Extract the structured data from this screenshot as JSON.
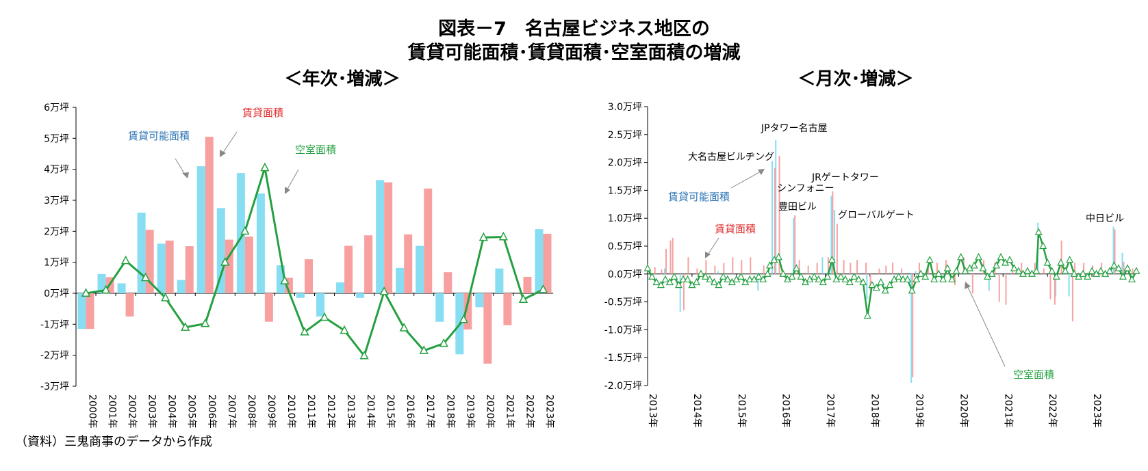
{
  "header": {
    "title_line1": "図表－7　名古屋ビジネス地区の",
    "title_line2": "賃貸可能面積･賃貸面積･空室面積の増減",
    "left_subtitle": "＜年次･増減＞",
    "right_subtitle": "＜月次･増減＞"
  },
  "source": "（資料）三鬼商事のデータから作成",
  "colors": {
    "leasable": "#87DDF2",
    "leased": "#F8A0A0",
    "vacant": "#24A040",
    "leasable_label": "#2E75B6",
    "leased_label": "#E03030",
    "vacant_label": "#22A040"
  },
  "chart_data": [
    {
      "type": "bar",
      "title": "＜年次･増減＞",
      "ylim": [
        -3,
        6
      ],
      "y_ticks": [
        "-3万坪",
        "-2万坪",
        "-1万坪",
        "0万坪",
        "1万坪",
        "2万坪",
        "3万坪",
        "4万坪",
        "5万坪",
        "6万坪"
      ],
      "categories": [
        "2000年",
        "2001年",
        "2002年",
        "2003年",
        "2004年",
        "2005年",
        "2006年",
        "2007年",
        "2008年",
        "2009年",
        "2010年",
        "2011年",
        "2012年",
        "2013年",
        "2014年",
        "2015年",
        "2016年",
        "2017年",
        "2018年",
        "2019年",
        "2020年",
        "2021年",
        "2022年",
        "2023年"
      ],
      "series": [
        {
          "name": "賃貸可能面積",
          "kind": "bar",
          "color": "#87DDF2",
          "values": [
            -1.15,
            0.62,
            0.32,
            2.6,
            1.6,
            0.43,
            4.1,
            2.75,
            3.88,
            3.22,
            0.9,
            -0.15,
            -0.75,
            0.35,
            -0.15,
            3.65,
            0.82,
            1.53,
            -0.92,
            -1.97,
            -0.45,
            0.8,
            0.0,
            2.07
          ]
        },
        {
          "name": "賃貸面積",
          "kind": "bar",
          "color": "#F8A0A0",
          "values": [
            -1.15,
            0.52,
            -0.75,
            2.05,
            1.7,
            1.52,
            5.05,
            1.73,
            1.83,
            -0.92,
            0.5,
            1.1,
            0.0,
            1.53,
            1.87,
            3.58,
            1.9,
            3.38,
            0.68,
            -1.17,
            -2.27,
            -1.03,
            0.53,
            1.92
          ]
        },
        {
          "name": "空室面積",
          "kind": "line",
          "color": "#24A040",
          "values": [
            0.0,
            0.1,
            1.05,
            0.5,
            -0.15,
            -1.1,
            -0.98,
            1.0,
            2.0,
            4.05,
            0.4,
            -1.25,
            -0.78,
            -1.2,
            -2.02,
            0.05,
            -1.12,
            -1.85,
            -1.62,
            -0.85,
            1.8,
            1.82,
            -0.2,
            0.12
          ]
        }
      ],
      "annotations": [
        {
          "text": "賃貸可能面積",
          "color": "#2E75B6"
        },
        {
          "text": "賃貸面積",
          "color": "#E03030"
        },
        {
          "text": "空室面積",
          "color": "#22A040"
        }
      ]
    },
    {
      "type": "bar",
      "title": "＜月次･増減＞",
      "ylim": [
        -2.0,
        3.0
      ],
      "y_ticks": [
        "-2.0万坪",
        "-1.5万坪",
        "-1.0万坪",
        "-0.5万坪",
        "0.0万坪",
        "0.5万坪",
        "1.0万坪",
        "1.5万坪",
        "2.0万坪",
        "2.5万坪",
        "3.0万坪"
      ],
      "x_ticks": [
        "2013年",
        "2014年",
        "2015年",
        "2016年",
        "2017年",
        "2018年",
        "2019年",
        "2020年",
        "2021年",
        "2022年",
        "2023年"
      ],
      "x_range": [
        2013.0,
        2024.0
      ],
      "series": [
        {
          "name": "賃貸可能面積",
          "kind": "bar",
          "color": "#87DDF2",
          "points": [
            [
              2013.4,
              0.1
            ],
            [
              2013.75,
              -0.68
            ],
            [
              2014.6,
              0.05
            ],
            [
              2015.5,
              -0.3
            ],
            [
              2015.82,
              2.02
            ],
            [
              2015.9,
              2.4
            ],
            [
              2016.3,
              1.0
            ],
            [
              2016.95,
              0.3
            ],
            [
              2017.15,
              1.4
            ],
            [
              2017.22,
              1.15
            ],
            [
              2017.95,
              -0.45
            ],
            [
              2018.95,
              -1.95
            ],
            [
              2019.05,
              0.05
            ],
            [
              2020.7,
              -0.3
            ],
            [
              2021.8,
              0.92
            ],
            [
              2022.2,
              -0.4
            ],
            [
              2022.5,
              -0.4
            ],
            [
              2023.5,
              0.85
            ],
            [
              2023.7,
              0.38
            ]
          ]
        },
        {
          "name": "賃貸面積",
          "kind": "bar",
          "color": "#F8A0A0",
          "points": [
            [
              2013.15,
              0.12
            ],
            [
              2013.3,
              0.08
            ],
            [
              2013.4,
              0.45
            ],
            [
              2013.5,
              0.6
            ],
            [
              2013.55,
              0.65
            ],
            [
              2013.8,
              -0.65
            ],
            [
              2013.9,
              0.3
            ],
            [
              2014.1,
              0.1
            ],
            [
              2014.3,
              0.25
            ],
            [
              2014.5,
              0.15
            ],
            [
              2014.7,
              0.2
            ],
            [
              2014.9,
              0.3
            ],
            [
              2015.1,
              0.25
            ],
            [
              2015.3,
              0.3
            ],
            [
              2015.6,
              0.15
            ],
            [
              2015.85,
              1.9
            ],
            [
              2015.95,
              2.12
            ],
            [
              2016.3,
              1.05
            ],
            [
              2016.4,
              0.25
            ],
            [
              2016.6,
              0.15
            ],
            [
              2016.8,
              0.2
            ],
            [
              2017.05,
              0.3
            ],
            [
              2017.15,
              1.48
            ],
            [
              2017.25,
              0.9
            ],
            [
              2017.4,
              0.25
            ],
            [
              2017.55,
              0.2
            ],
            [
              2017.7,
              0.25
            ],
            [
              2017.9,
              0.2
            ],
            [
              2018.0,
              -0.3
            ],
            [
              2018.2,
              0.1
            ],
            [
              2018.35,
              0.15
            ],
            [
              2018.5,
              0.2
            ],
            [
              2018.7,
              0.1
            ],
            [
              2018.95,
              -1.85
            ],
            [
              2019.1,
              0.2
            ],
            [
              2019.3,
              0.15
            ],
            [
              2019.5,
              0.2
            ],
            [
              2019.7,
              0.25
            ],
            [
              2019.9,
              -0.2
            ],
            [
              2020.1,
              0.3
            ],
            [
              2020.3,
              -0.35
            ],
            [
              2020.55,
              0.25
            ],
            [
              2020.8,
              0.2
            ],
            [
              2020.9,
              -0.5
            ],
            [
              2021.05,
              -0.55
            ],
            [
              2021.2,
              0.15
            ],
            [
              2021.4,
              0.2
            ],
            [
              2021.7,
              0.2
            ],
            [
              2021.9,
              0.1
            ],
            [
              2022.05,
              -0.45
            ],
            [
              2022.15,
              -0.55
            ],
            [
              2022.3,
              0.6
            ],
            [
              2022.55,
              -0.85
            ],
            [
              2022.6,
              0.2
            ],
            [
              2022.8,
              0.2
            ],
            [
              2023.0,
              0.15
            ],
            [
              2023.2,
              0.2
            ],
            [
              2023.5,
              0.8
            ],
            [
              2023.7,
              0.22
            ],
            [
              2023.9,
              0.1
            ]
          ]
        },
        {
          "name": "空室面積",
          "kind": "line",
          "color": "#24A040",
          "points": [
            [
              2013.0,
              0.1
            ],
            [
              2013.1,
              -0.05
            ],
            [
              2013.2,
              -0.15
            ],
            [
              2013.3,
              -0.2
            ],
            [
              2013.4,
              -0.1
            ],
            [
              2013.5,
              -0.15
            ],
            [
              2013.6,
              -0.05
            ],
            [
              2013.7,
              -0.2
            ],
            [
              2013.8,
              -0.1
            ],
            [
              2013.9,
              -0.1
            ],
            [
              2014.0,
              -0.2
            ],
            [
              2014.1,
              -0.15
            ],
            [
              2014.2,
              0.0
            ],
            [
              2014.3,
              -0.05
            ],
            [
              2014.4,
              -0.1
            ],
            [
              2014.5,
              -0.15
            ],
            [
              2014.6,
              -0.2
            ],
            [
              2014.7,
              -0.05
            ],
            [
              2014.8,
              -0.1
            ],
            [
              2014.9,
              -0.15
            ],
            [
              2015.0,
              -0.1
            ],
            [
              2015.1,
              -0.05
            ],
            [
              2015.2,
              -0.15
            ],
            [
              2015.3,
              -0.1
            ],
            [
              2015.4,
              -0.1
            ],
            [
              2015.5,
              -0.05
            ],
            [
              2015.6,
              -0.1
            ],
            [
              2015.7,
              0.0
            ],
            [
              2015.75,
              0.15
            ],
            [
              2015.85,
              0.25
            ],
            [
              2015.95,
              0.3
            ],
            [
              2016.05,
              0.0
            ],
            [
              2016.15,
              -0.1
            ],
            [
              2016.25,
              -0.05
            ],
            [
              2016.35,
              0.1
            ],
            [
              2016.45,
              -0.05
            ],
            [
              2016.55,
              -0.15
            ],
            [
              2016.65,
              -0.1
            ],
            [
              2016.75,
              -0.05
            ],
            [
              2016.85,
              -0.1
            ],
            [
              2016.95,
              -0.15
            ],
            [
              2017.05,
              -0.05
            ],
            [
              2017.15,
              0.25
            ],
            [
              2017.25,
              -0.1
            ],
            [
              2017.35,
              -0.05
            ],
            [
              2017.45,
              -0.1
            ],
            [
              2017.55,
              -0.15
            ],
            [
              2017.65,
              -0.05
            ],
            [
              2017.75,
              -0.1
            ],
            [
              2017.85,
              -0.15
            ],
            [
              2017.95,
              -0.75
            ],
            [
              2018.05,
              -0.2
            ],
            [
              2018.15,
              -0.25
            ],
            [
              2018.25,
              -0.15
            ],
            [
              2018.35,
              -0.3
            ],
            [
              2018.45,
              -0.2
            ],
            [
              2018.55,
              -0.1
            ],
            [
              2018.65,
              -0.05
            ],
            [
              2018.75,
              -0.1
            ],
            [
              2018.85,
              -0.1
            ],
            [
              2018.95,
              -0.3
            ],
            [
              2019.05,
              -0.1
            ],
            [
              2019.15,
              0.0
            ],
            [
              2019.25,
              -0.05
            ],
            [
              2019.35,
              0.25
            ],
            [
              2019.45,
              -0.1
            ],
            [
              2019.55,
              0.0
            ],
            [
              2019.65,
              -0.1
            ],
            [
              2019.75,
              0.1
            ],
            [
              2019.85,
              -0.1
            ],
            [
              2019.95,
              0.05
            ],
            [
              2020.05,
              0.3
            ],
            [
              2020.15,
              0.05
            ],
            [
              2020.25,
              0.1
            ],
            [
              2020.35,
              0.15
            ],
            [
              2020.45,
              0.3
            ],
            [
              2020.55,
              0.1
            ],
            [
              2020.65,
              -0.05
            ],
            [
              2020.75,
              0.0
            ],
            [
              2020.85,
              0.15
            ],
            [
              2020.95,
              0.3
            ],
            [
              2021.05,
              0.2
            ],
            [
              2021.15,
              0.25
            ],
            [
              2021.25,
              0.1
            ],
            [
              2021.35,
              0.05
            ],
            [
              2021.45,
              0.0
            ],
            [
              2021.55,
              0.05
            ],
            [
              2021.65,
              0.0
            ],
            [
              2021.75,
              0.05
            ],
            [
              2021.8,
              0.75
            ],
            [
              2021.9,
              0.5
            ],
            [
              2022.0,
              0.2
            ],
            [
              2022.1,
              0.05
            ],
            [
              2022.2,
              -0.05
            ],
            [
              2022.3,
              0.2
            ],
            [
              2022.4,
              0.05
            ],
            [
              2022.5,
              0.25
            ],
            [
              2022.6,
              0.0
            ],
            [
              2022.7,
              -0.05
            ],
            [
              2022.8,
              0.0
            ],
            [
              2022.9,
              -0.05
            ],
            [
              2023.0,
              0.05
            ],
            [
              2023.1,
              0.0
            ],
            [
              2023.2,
              0.05
            ],
            [
              2023.3,
              0.0
            ],
            [
              2023.4,
              0.05
            ],
            [
              2023.5,
              0.15
            ],
            [
              2023.6,
              0.1
            ],
            [
              2023.7,
              -0.05
            ],
            [
              2023.8,
              0.1
            ],
            [
              2023.9,
              -0.1
            ],
            [
              2024.0,
              0.05
            ]
          ]
        }
      ],
      "annotations": [
        {
          "text": "JPタワー名古屋",
          "color": "#000000"
        },
        {
          "text": "大名古屋ビルヂング",
          "color": "#000000"
        },
        {
          "text": "シンフォニー",
          "color": "#000000"
        },
        {
          "text": "豊田ビル",
          "color": "#000000"
        },
        {
          "text": "JRゲートタワー",
          "color": "#000000"
        },
        {
          "text": "グローバルゲート",
          "color": "#000000"
        },
        {
          "text": "中日ビル",
          "color": "#000000"
        },
        {
          "text": "賃貸可能面積",
          "color": "#2E75B6"
        },
        {
          "text": "賃貸面積",
          "color": "#E03030"
        },
        {
          "text": "空室面積",
          "color": "#22A040"
        }
      ]
    }
  ]
}
